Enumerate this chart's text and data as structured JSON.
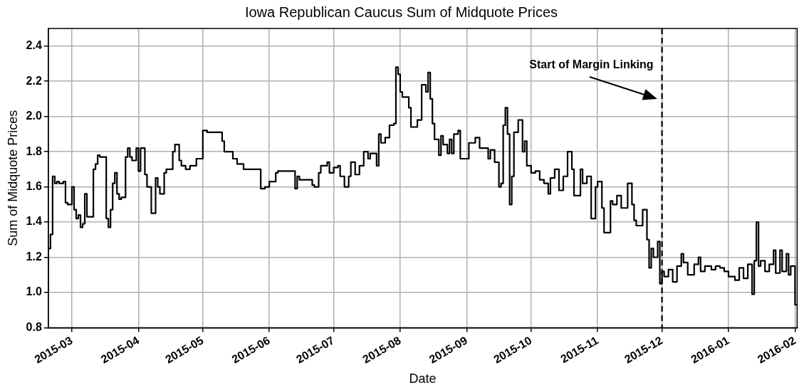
{
  "chart_data": {
    "type": "step",
    "title": "Iowa Republican Caucus Sum of Midquote Prices",
    "xlabel": "Date",
    "ylabel": "Sum of Midquote Prices",
    "x": [
      "2015-02-18",
      "2015-02-19",
      "2015-02-20",
      "2015-02-21",
      "2015-02-22",
      "2015-02-23",
      "2015-02-25",
      "2015-02-26",
      "2015-02-27",
      "2015-03-01",
      "2015-03-02",
      "2015-03-03",
      "2015-03-04",
      "2015-03-05",
      "2015-03-06",
      "2015-03-07",
      "2015-03-08",
      "2015-03-09",
      "2015-03-11",
      "2015-03-12",
      "2015-03-13",
      "2015-03-14",
      "2015-03-17",
      "2015-03-18",
      "2015-03-19",
      "2015-03-20",
      "2015-03-21",
      "2015-03-22",
      "2015-03-23",
      "2015-03-24",
      "2015-03-26",
      "2015-03-27",
      "2015-03-28",
      "2015-03-29",
      "2015-03-31",
      "2015-04-01",
      "2015-04-02",
      "2015-04-04",
      "2015-04-05",
      "2015-04-07",
      "2015-04-08",
      "2015-04-09",
      "2015-04-10",
      "2015-04-11",
      "2015-04-13",
      "2015-04-14",
      "2015-04-17",
      "2015-04-18",
      "2015-04-20",
      "2015-04-21",
      "2015-04-23",
      "2015-04-25",
      "2015-04-28",
      "2015-05-01",
      "2015-05-03",
      "2015-05-10",
      "2015-05-11",
      "2015-05-15",
      "2015-05-17",
      "2015-05-20",
      "2015-05-21",
      "2015-05-28",
      "2015-05-30",
      "2015-06-01",
      "2015-06-04",
      "2015-06-05",
      "2015-06-13",
      "2015-06-14",
      "2015-06-15",
      "2015-06-21",
      "2015-06-22",
      "2015-06-24",
      "2015-06-25",
      "2015-06-28",
      "2015-06-29",
      "2015-07-01",
      "2015-07-03",
      "2015-07-04",
      "2015-07-06",
      "2015-07-08",
      "2015-07-09",
      "2015-07-11",
      "2015-07-13",
      "2015-07-15",
      "2015-07-17",
      "2015-07-18",
      "2015-07-21",
      "2015-07-22",
      "2015-07-23",
      "2015-07-25",
      "2015-07-27",
      "2015-07-29",
      "2015-07-30",
      "2015-07-31",
      "2015-08-01",
      "2015-08-02",
      "2015-08-05",
      "2015-08-06",
      "2015-08-08",
      "2015-08-09",
      "2015-08-11",
      "2015-08-13",
      "2015-08-14",
      "2015-08-15",
      "2015-08-16",
      "2015-08-17",
      "2015-08-19",
      "2015-08-20",
      "2015-08-21",
      "2015-08-23",
      "2015-08-24",
      "2015-08-25",
      "2015-08-26",
      "2015-08-28",
      "2015-08-29",
      "2015-09-02",
      "2015-09-05",
      "2015-09-07",
      "2015-09-09",
      "2015-09-11",
      "2015-09-12",
      "2015-09-14",
      "2015-09-16",
      "2015-09-17",
      "2015-09-18",
      "2015-09-19",
      "2015-09-20",
      "2015-09-21",
      "2015-09-22",
      "2015-09-23",
      "2015-09-25",
      "2015-09-27",
      "2015-09-28",
      "2015-09-29",
      "2015-10-01",
      "2015-10-03",
      "2015-10-05",
      "2015-10-07",
      "2015-10-09",
      "2015-10-10",
      "2015-10-12",
      "2015-10-14",
      "2015-10-16",
      "2015-10-18",
      "2015-10-20",
      "2015-10-21",
      "2015-10-24",
      "2015-10-25",
      "2015-10-27",
      "2015-10-29",
      "2015-10-31",
      "2015-11-01",
      "2015-11-03",
      "2015-11-04",
      "2015-11-07",
      "2015-11-08",
      "2015-11-10",
      "2015-11-12",
      "2015-11-15",
      "2015-11-17",
      "2015-11-18",
      "2015-11-19",
      "2015-11-22",
      "2015-11-24",
      "2015-11-25",
      "2015-11-26",
      "2015-11-27",
      "2015-11-29",
      "2015-11-30",
      "2015-12-01",
      "2015-12-02",
      "2015-12-04",
      "2015-12-06",
      "2015-12-08",
      "2015-12-10",
      "2015-12-11",
      "2015-12-13",
      "2015-12-16",
      "2015-12-18",
      "2015-12-19",
      "2015-12-21",
      "2015-12-24",
      "2015-12-26",
      "2015-12-28",
      "2015-12-30",
      "2016-01-01",
      "2016-01-04",
      "2016-01-06",
      "2016-01-08",
      "2016-01-10",
      "2016-01-12",
      "2016-01-13",
      "2016-01-14",
      "2016-01-15",
      "2016-01-16",
      "2016-01-18",
      "2016-01-20",
      "2016-01-22",
      "2016-01-23",
      "2016-01-25",
      "2016-01-26",
      "2016-01-28",
      "2016-01-29",
      "2016-01-30",
      "2016-02-01",
      "2016-02-02"
    ],
    "series": [
      {
        "color": "#000000",
        "values": [
          1.01,
          1.25,
          1.33,
          1.66,
          1.62,
          1.63,
          1.62,
          1.63,
          1.51,
          1.5,
          1.6,
          1.47,
          1.42,
          1.44,
          1.37,
          1.39,
          1.56,
          1.43,
          1.43,
          1.7,
          1.73,
          1.78,
          1.77,
          1.42,
          1.37,
          1.47,
          1.62,
          1.68,
          1.56,
          1.53,
          1.54,
          1.77,
          1.82,
          1.77,
          1.75,
          1.82,
          1.69,
          1.82,
          1.67,
          1.6,
          1.45,
          1.45,
          1.65,
          1.6,
          1.56,
          1.68,
          1.7,
          1.8,
          1.84,
          1.75,
          1.72,
          1.7,
          1.72,
          1.76,
          1.92,
          1.91,
          1.86,
          1.8,
          1.76,
          1.73,
          1.7,
          1.7,
          1.59,
          1.6,
          1.63,
          1.68,
          1.69,
          1.59,
          1.66,
          1.64,
          1.61,
          1.6,
          1.68,
          1.72,
          1.74,
          1.68,
          1.71,
          1.72,
          1.66,
          1.6,
          1.66,
          1.74,
          1.67,
          1.72,
          1.8,
          1.76,
          1.79,
          1.72,
          1.9,
          1.85,
          1.88,
          1.95,
          1.96,
          2.28,
          2.24,
          2.14,
          2.11,
          2.05,
          1.94,
          1.94,
          1.98,
          2.18,
          2.14,
          2.25,
          2.1,
          1.96,
          1.87,
          1.78,
          1.89,
          1.84,
          1.79,
          1.87,
          1.79,
          1.9,
          1.92,
          1.76,
          1.85,
          1.88,
          1.82,
          1.82,
          1.76,
          1.81,
          1.74,
          1.6,
          1.62,
          1.95,
          2.05,
          1.9,
          1.5,
          1.66,
          1.91,
          1.98,
          1.8,
          1.86,
          1.72,
          1.68,
          1.69,
          1.64,
          1.62,
          1.56,
          1.65,
          1.7,
          1.58,
          1.66,
          1.8,
          1.7,
          1.55,
          1.7,
          1.62,
          1.66,
          1.42,
          1.6,
          1.63,
          1.48,
          1.34,
          1.52,
          1.5,
          1.55,
          1.48,
          1.62,
          1.5,
          1.41,
          1.38,
          1.47,
          1.3,
          1.14,
          1.25,
          1.2,
          1.29,
          1.05,
          1.12,
          1.09,
          1.13,
          1.06,
          1.15,
          1.22,
          1.17,
          1.1,
          1.16,
          1.2,
          1.12,
          1.15,
          1.13,
          1.15,
          1.14,
          1.12,
          1.09,
          1.07,
          1.14,
          1.08,
          1.16,
          0.99,
          1.18,
          1.4,
          1.15,
          1.18,
          1.12,
          1.16,
          1.24,
          1.11,
          1.24,
          1.12,
          1.22,
          1.1,
          1.15,
          0.93
        ]
      }
    ],
    "xlim": [
      "2015-02-18",
      "2016-02-02"
    ],
    "xticks": [
      "2015-03",
      "2015-04",
      "2015-05",
      "2015-06",
      "2015-07",
      "2015-08",
      "2015-09",
      "2015-10",
      "2015-11",
      "2015-12",
      "2016-01",
      "2016-02"
    ],
    "ylim": [
      0.8,
      2.5
    ],
    "yticks": [
      {
        "value": 0.8,
        "label": "0.8"
      },
      {
        "value": 1,
        "label": "1.0"
      },
      {
        "value": 1.2,
        "label": "1.2"
      },
      {
        "value": 1.4,
        "label": "1.4"
      },
      {
        "value": 1.6,
        "label": "1.6"
      },
      {
        "value": 1.8,
        "label": "1.8"
      },
      {
        "value": 2,
        "label": "2.0"
      },
      {
        "value": 2.2,
        "label": "2.2"
      },
      {
        "value": 2.4,
        "label": "2.4"
      }
    ],
    "ref_lines": [
      {
        "axis": "x",
        "value": "2015-12-01",
        "color": "#000000",
        "line_style": "dashed"
      }
    ],
    "annotations": [
      {
        "text": "Start of Margin Linking",
        "x": "2015-12-01",
        "y": 2.1
      }
    ],
    "grid": true,
    "legend": false,
    "marker": "none"
  }
}
